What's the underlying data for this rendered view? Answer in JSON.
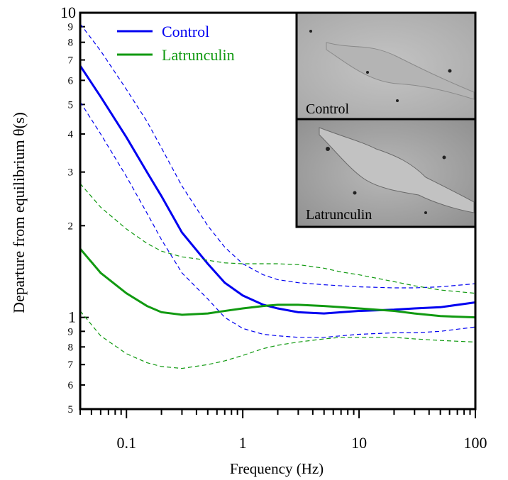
{
  "chart_data": {
    "type": "line",
    "xlabel": "Frequency (Hz)",
    "ylabel": "Departure from equilibrium θ(s)",
    "xscale": "log",
    "yscale": "log",
    "xlim": [
      0.04,
      100
    ],
    "ylim": [
      0.5,
      10
    ],
    "xticks": [
      {
        "value": 0.1,
        "label": "0.1"
      },
      1,
      10,
      100
    ],
    "xminorticks": [
      0.04,
      0.05,
      0.06,
      0.07,
      0.08,
      0.09,
      0.2,
      0.3,
      0.4,
      0.5,
      0.6,
      0.7,
      0.8,
      0.9,
      2,
      3,
      4,
      5,
      6,
      7,
      8,
      9,
      20,
      30,
      40,
      50,
      60,
      70,
      80,
      90
    ],
    "yticks": [
      {
        "value": 0.5,
        "label": "5"
      },
      {
        "value": 0.6,
        "label": "6"
      },
      {
        "value": 0.7,
        "label": "7"
      },
      {
        "value": 0.8,
        "label": "8"
      },
      {
        "value": 0.9,
        "label": "9"
      },
      1,
      2,
      3,
      4,
      5,
      6,
      7,
      8,
      9,
      10
    ],
    "x": [
      0.04,
      0.06,
      0.1,
      0.15,
      0.2,
      0.3,
      0.5,
      0.7,
      1,
      1.5,
      2,
      3,
      5,
      7,
      10,
      20,
      30,
      50,
      100
    ],
    "series": [
      {
        "name": "Control",
        "color": "#0000f0",
        "values": [
          6.7,
          5.3,
          3.9,
          3.0,
          2.5,
          1.9,
          1.5,
          1.3,
          1.18,
          1.1,
          1.07,
          1.04,
          1.03,
          1.04,
          1.05,
          1.06,
          1.07,
          1.08,
          1.12
        ],
        "upper": [
          9.2,
          7.5,
          5.6,
          4.4,
          3.6,
          2.7,
          2.0,
          1.7,
          1.5,
          1.38,
          1.33,
          1.3,
          1.28,
          1.27,
          1.26,
          1.25,
          1.25,
          1.26,
          1.29
        ],
        "lower": [
          5.1,
          4.0,
          2.9,
          2.2,
          1.8,
          1.4,
          1.15,
          1.0,
          0.92,
          0.88,
          0.87,
          0.86,
          0.86,
          0.87,
          0.88,
          0.89,
          0.89,
          0.9,
          0.93
        ]
      },
      {
        "name": "Latrunculin",
        "color": "#119a11",
        "values": [
          1.68,
          1.4,
          1.2,
          1.09,
          1.04,
          1.02,
          1.03,
          1.05,
          1.07,
          1.09,
          1.1,
          1.1,
          1.09,
          1.08,
          1.07,
          1.05,
          1.03,
          1.01,
          1.0
        ],
        "upper": [
          2.75,
          2.3,
          1.95,
          1.75,
          1.65,
          1.58,
          1.54,
          1.51,
          1.5,
          1.5,
          1.5,
          1.49,
          1.45,
          1.41,
          1.38,
          1.31,
          1.27,
          1.23,
          1.2
        ],
        "lower": [
          1.05,
          0.87,
          0.76,
          0.71,
          0.69,
          0.68,
          0.7,
          0.72,
          0.75,
          0.79,
          0.81,
          0.83,
          0.85,
          0.86,
          0.86,
          0.86,
          0.85,
          0.84,
          0.83
        ]
      }
    ],
    "legend": "upper left",
    "inset": {
      "labels": [
        "Control",
        "Latrunculin"
      ]
    }
  }
}
